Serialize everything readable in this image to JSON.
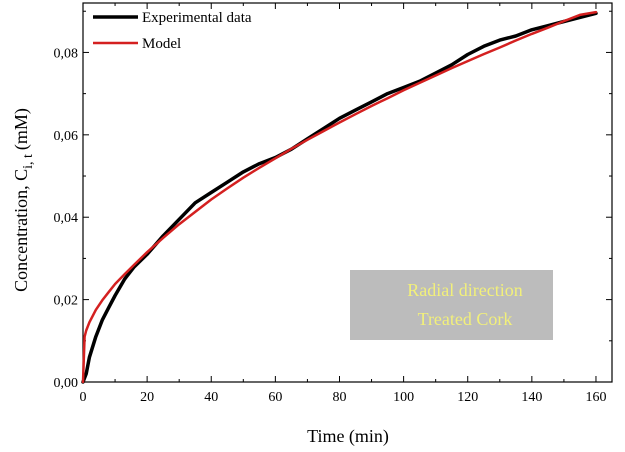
{
  "chart_data": {
    "type": "line",
    "xlabel": "Time (min)",
    "ylabel": {
      "main": "Concentration, C",
      "subscript": "i, t",
      "unit": "(mM)"
    },
    "xlim": [
      0,
      165
    ],
    "ylim": [
      0,
      0.092
    ],
    "x_ticks": [
      0,
      20,
      40,
      60,
      80,
      100,
      120,
      140,
      160
    ],
    "x_tick_labels": [
      "0",
      "20",
      "40",
      "60",
      "80",
      "100",
      "120",
      "140",
      "160"
    ],
    "y_ticks": [
      0,
      0.02,
      0.04,
      0.06,
      0.08
    ],
    "y_tick_labels": [
      "0,00",
      "0,02",
      "0,04",
      "0,06",
      "0,08"
    ],
    "grid": false,
    "legend_position": "top-left",
    "series": [
      {
        "name": "Experimental data",
        "color": "#000000",
        "x": [
          0,
          0.5,
          1,
          2,
          4,
          6,
          8,
          10,
          13,
          16,
          20,
          25,
          30,
          35,
          40,
          45,
          50,
          55,
          60,
          65,
          70,
          75,
          80,
          85,
          90,
          95,
          100,
          105,
          110,
          115,
          120,
          125,
          130,
          135,
          140,
          145,
          150,
          155,
          160
        ],
        "y": [
          0,
          0.001,
          0.002,
          0.006,
          0.011,
          0.015,
          0.018,
          0.021,
          0.025,
          0.028,
          0.031,
          0.0355,
          0.0395,
          0.0435,
          0.046,
          0.0485,
          0.051,
          0.053,
          0.0545,
          0.0565,
          0.059,
          0.0615,
          0.064,
          0.066,
          0.068,
          0.07,
          0.0715,
          0.073,
          0.075,
          0.077,
          0.0795,
          0.0815,
          0.083,
          0.084,
          0.0855,
          0.0865,
          0.0875,
          0.0885,
          0.0895
        ]
      },
      {
        "name": "Model",
        "color": "#d42020",
        "x": [
          0,
          0.5,
          1,
          2,
          4,
          6,
          8,
          10,
          13,
          16,
          20,
          25,
          30,
          35,
          40,
          45,
          50,
          55,
          60,
          65,
          70,
          75,
          80,
          85,
          90,
          95,
          100,
          105,
          110,
          115,
          120,
          125,
          130,
          135,
          140,
          145,
          150,
          155,
          160
        ],
        "y": [
          0,
          0.011,
          0.0125,
          0.0145,
          0.0175,
          0.0198,
          0.0218,
          0.0238,
          0.0262,
          0.0285,
          0.0315,
          0.035,
          0.0383,
          0.0413,
          0.0443,
          0.047,
          0.0496,
          0.052,
          0.0543,
          0.0566,
          0.0588,
          0.0609,
          0.063,
          0.065,
          0.067,
          0.0689,
          0.0708,
          0.0726,
          0.0744,
          0.0762,
          0.0779,
          0.0796,
          0.0812,
          0.0829,
          0.0845,
          0.086,
          0.0876,
          0.0891,
          0.0898
        ]
      }
    ],
    "annotation": {
      "lines": [
        "Radial direction",
        "Treated Cork"
      ],
      "text_color": "#f2f07a",
      "box_color": "#bcbcbc"
    }
  }
}
